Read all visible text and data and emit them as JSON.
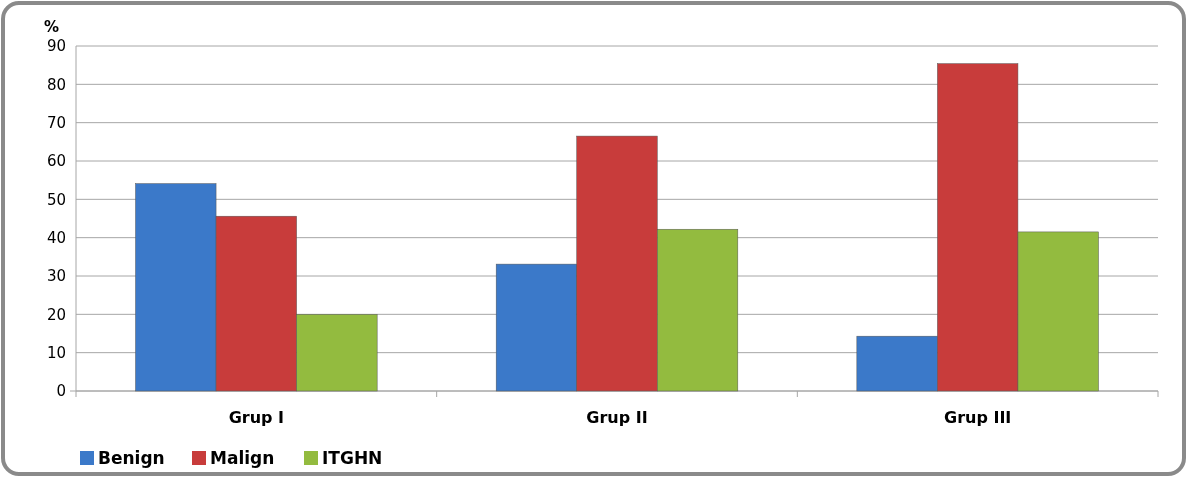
{
  "chart_data": {
    "type": "bar",
    "ylabel": "%",
    "categories": [
      "Grup I",
      "Grup II",
      "Grup III"
    ],
    "series": [
      {
        "name": "Benign",
        "color": "#3b79c9",
        "values": [
          54.1,
          33.1,
          14.3
        ]
      },
      {
        "name": "Malign",
        "color": "#c83c3b",
        "values": [
          45.6,
          66.5,
          85.4
        ]
      },
      {
        "name": "ITGHN",
        "color": "#93bb3f",
        "values": [
          20,
          42.2,
          41.5
        ]
      }
    ],
    "ylim": [
      0,
      90
    ],
    "yticks": [
      0,
      10,
      20,
      30,
      40,
      50,
      60,
      70,
      80,
      90
    ],
    "grid": "y",
    "legend": "bottom left"
  }
}
